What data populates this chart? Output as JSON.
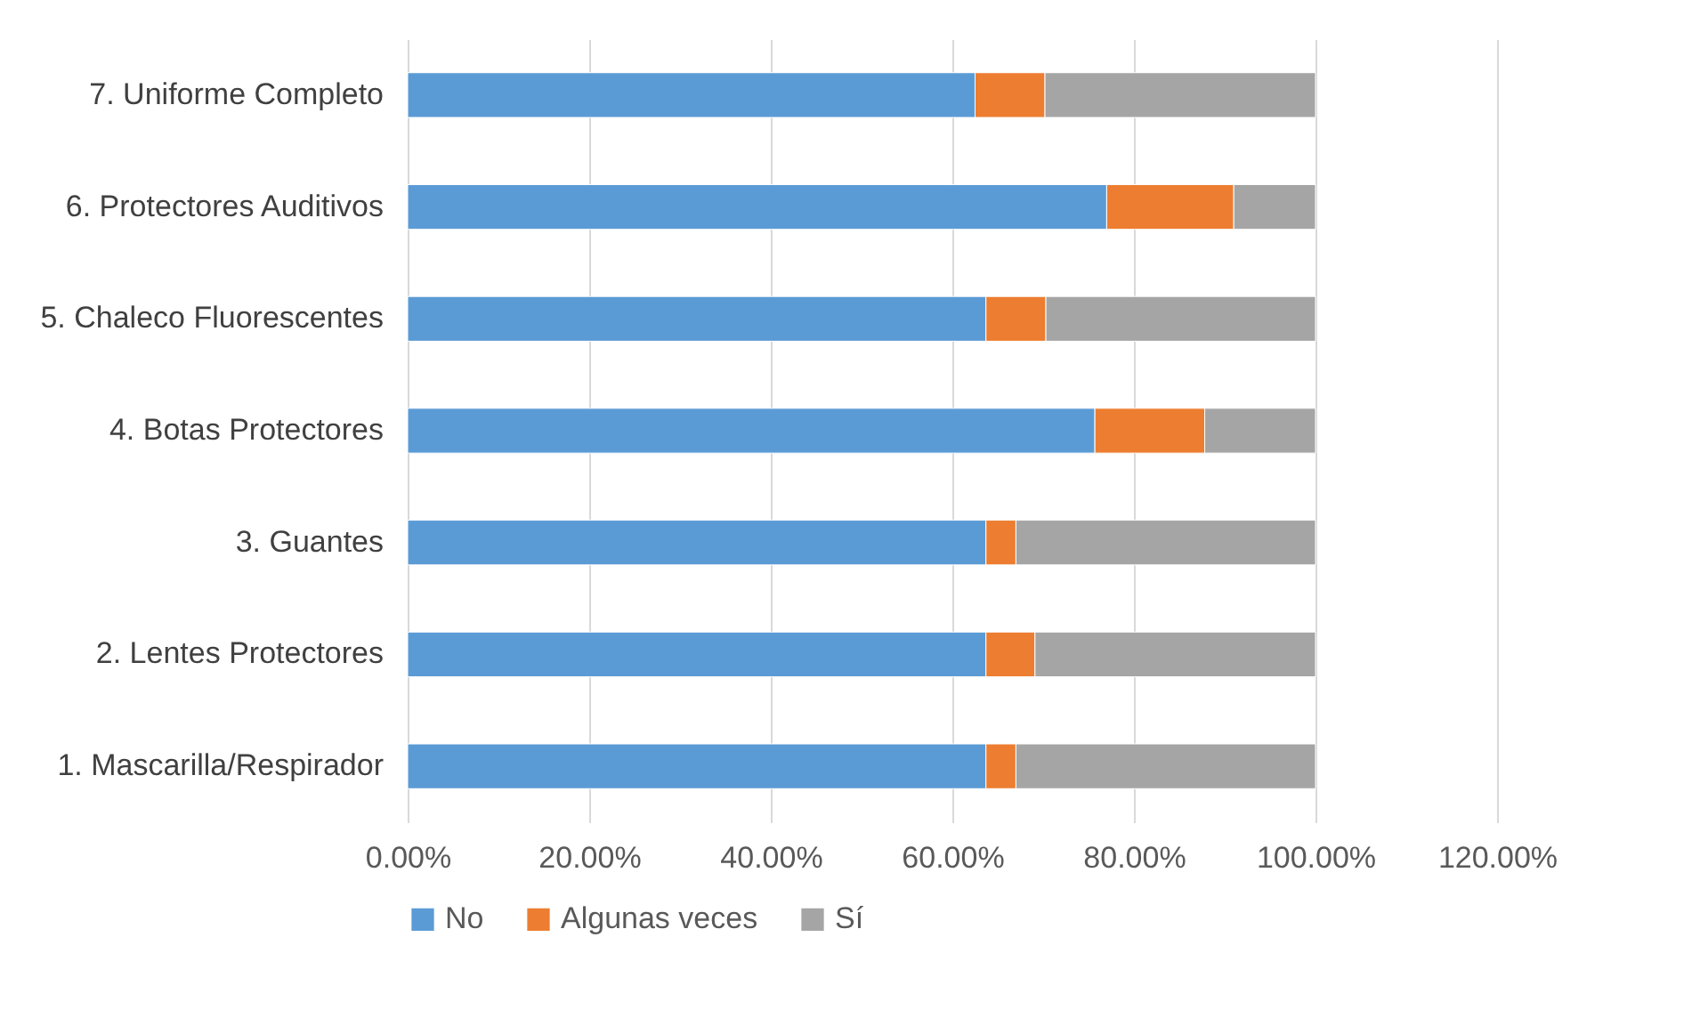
{
  "chart_data": {
    "type": "bar",
    "orientation": "horizontal",
    "stacked": true,
    "categories": [
      "7. Uniforme Completo",
      "6. Protectores Auditivos",
      "5. Chaleco Fluorescentes",
      "4. Botas Protectores",
      "3. Guantes",
      "2. Lentes Protectores",
      "1. Mascarilla/Respirador"
    ],
    "series": [
      {
        "name": "No",
        "color": "#5b9bd5",
        "values": [
          62.5,
          77,
          63.7,
          75.7,
          63.7,
          63.7,
          63.7
        ]
      },
      {
        "name": "Algunas veces",
        "color": "#ed7d31",
        "values": [
          7.7,
          14,
          6.6,
          12.1,
          3.3,
          5.4,
          3.3
        ]
      },
      {
        "name": "Sí",
        "color": "#a5a5a5",
        "values": [
          29.8,
          9,
          29.7,
          12.2,
          33,
          30.9,
          33
        ]
      }
    ],
    "xlim": [
      0,
      120
    ],
    "xticks": [
      {
        "value": 0,
        "label": "0.00%"
      },
      {
        "value": 20,
        "label": "20.00%"
      },
      {
        "value": 40,
        "label": "40.00%"
      },
      {
        "value": 60,
        "label": "60.00%"
      },
      {
        "value": 80,
        "label": "80.00%"
      },
      {
        "value": 100,
        "label": "100.00%"
      },
      {
        "value": 120,
        "label": "120.00%"
      }
    ],
    "grid": "x",
    "legend": "bottom"
  }
}
